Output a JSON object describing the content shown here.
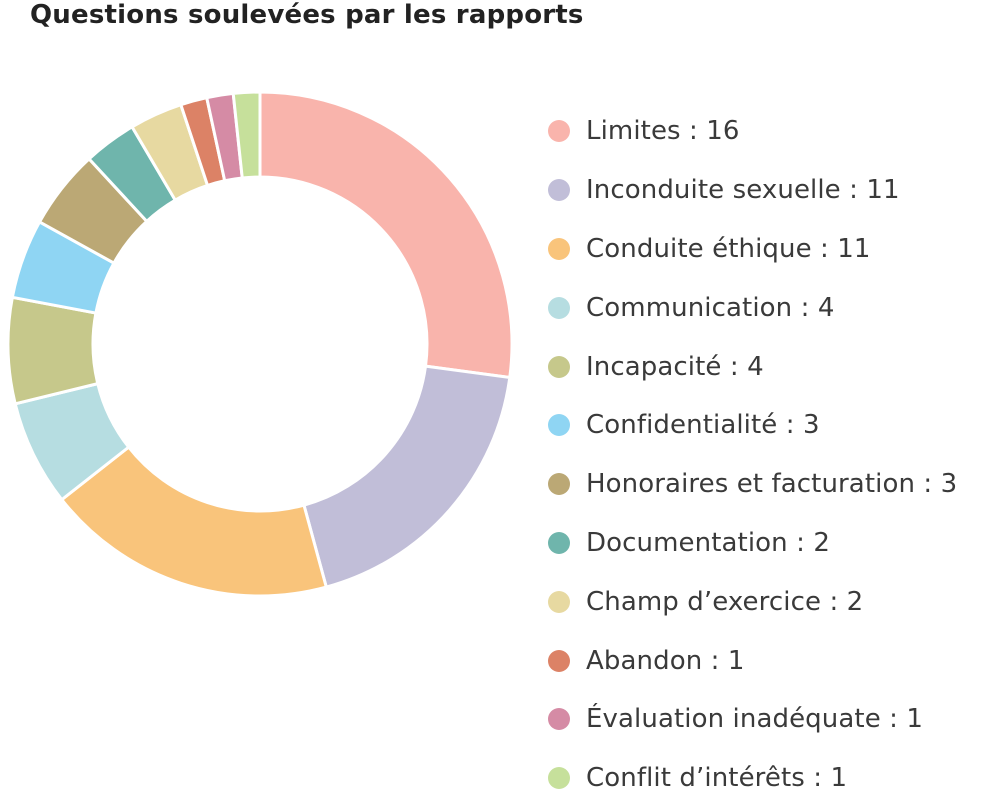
{
  "chart_data": {
    "type": "pie",
    "title": "Questions soulevées par les rapports",
    "categories": [
      "Limites",
      "Inconduite sexuelle",
      "Conduite éthique",
      "Communication",
      "Incapacité",
      "Confidentialité",
      "Honoraires et facturation",
      "Documentation",
      "Champ d’exercice",
      "Abandon",
      "Évaluation inadéquate",
      "Conflit d’intérêts"
    ],
    "values": [
      16,
      11,
      11,
      4,
      4,
      3,
      3,
      2,
      2,
      1,
      1,
      1
    ],
    "legend_labels": [
      "Limites : 16",
      "Inconduite sexuelle : 11",
      "Conduite éthique : 11",
      "Communication : 4",
      "Incapacité : 4",
      "Confidentialité : 3",
      "Honoraires et facturation : 3",
      "Documentation : 2",
      "Champ d’exercice : 2",
      "Abandon : 1",
      "Évaluation inadéquate : 1",
      "Conflit d’intérêts : 1"
    ],
    "colors": [
      "#f9b4ac",
      "#c1bed8",
      "#f9c47b",
      "#b6dde1",
      "#c6c88b",
      "#8fd5f3",
      "#bba875",
      "#6fb5ac",
      "#e7d9a1",
      "#dc8266",
      "#d58ba5",
      "#c6e09b"
    ],
    "donut": true,
    "legend_position": "right",
    "slice_labels": false
  }
}
